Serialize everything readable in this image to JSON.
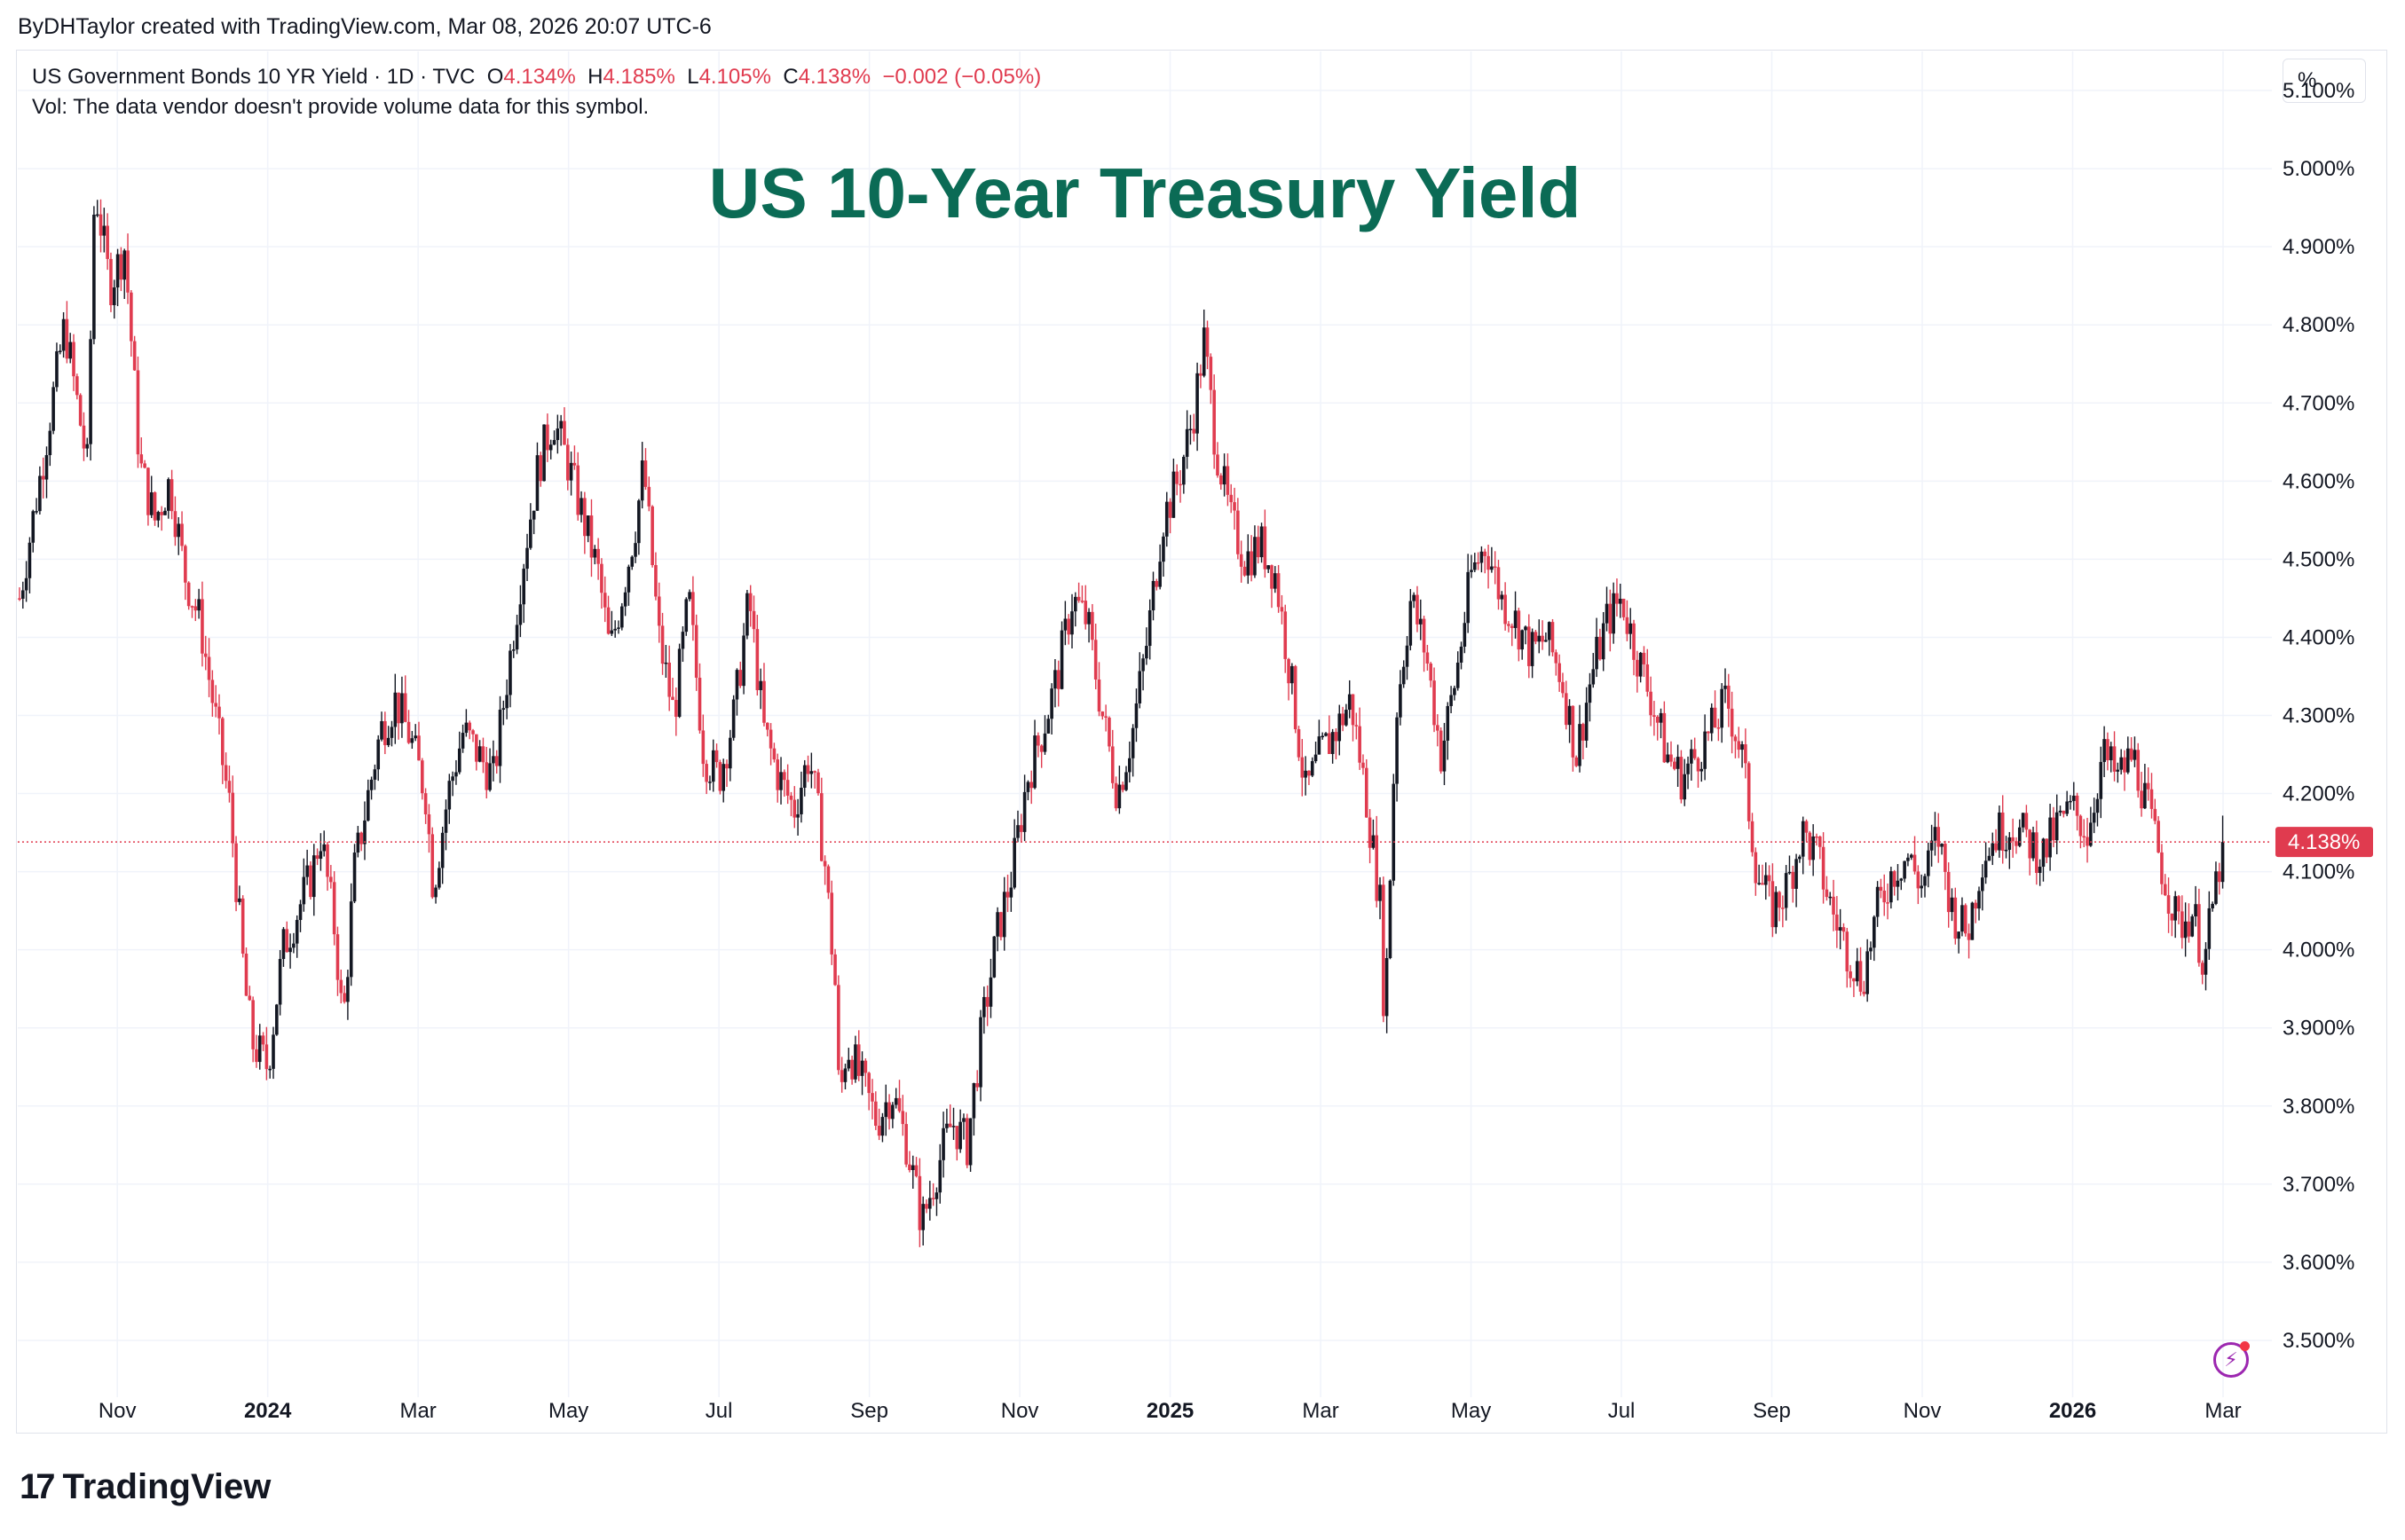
{
  "header": {
    "attribution": "ByDHTaylor created with TradingView.com, Mar 08, 2026 20:07 UTC-6"
  },
  "legend": {
    "symbol": "US Government Bonds 10 YR Yield · 1D · TVC",
    "open_label": "O",
    "open_value": "4.134%",
    "high_label": "H",
    "high_value": "4.185%",
    "low_label": "L",
    "low_value": "4.105%",
    "close_label": "C",
    "close_value": "4.138%",
    "change": "−0.002 (−0.05%)",
    "volume_note": "Vol: The data vendor doesn't provide volume data for this symbol."
  },
  "unit_button": "%",
  "branding": {
    "logo_text": "TradingView",
    "logo_mark": "17"
  },
  "colors": {
    "up": "#131722",
    "down": "#e03b4f",
    "title": "#0b6b55",
    "grid": "#f0f3fa",
    "price_line": "#e03b4f"
  },
  "icons": {
    "flash": "flash-icon",
    "logo": "tradingview-logo-icon"
  },
  "chart_data": {
    "type": "candlestick",
    "title": "US 10-Year Treasury Yield",
    "series_name": "US Government Bonds 10 YR Yield",
    "interval": "1D",
    "ylim": [
      3.45,
      5.15
    ],
    "y_ticks": [
      3.5,
      3.6,
      3.7,
      3.8,
      3.9,
      4.0,
      4.1,
      4.2,
      4.3,
      4.4,
      4.5,
      4.6,
      4.7,
      4.8,
      4.9,
      5.0,
      5.1
    ],
    "y_tick_labels": [
      "3.500%",
      "3.600%",
      "3.700%",
      "3.800%",
      "3.900%",
      "4.000%",
      "4.100%",
      "4.200%",
      "4.300%",
      "4.400%",
      "4.500%",
      "4.600%",
      "4.700%",
      "4.800%",
      "4.900%",
      "5.000%",
      "5.100%"
    ],
    "x_range_months": [
      0,
      29.3
    ],
    "x_ticks": [
      {
        "label": "Nov",
        "month": 1.3,
        "bold": false
      },
      {
        "label": "2024",
        "month": 3.3,
        "bold": true
      },
      {
        "label": "Mar",
        "month": 5.3,
        "bold": false
      },
      {
        "label": "May",
        "month": 7.3,
        "bold": false
      },
      {
        "label": "Jul",
        "month": 9.3,
        "bold": false
      },
      {
        "label": "Sep",
        "month": 11.3,
        "bold": false
      },
      {
        "label": "Nov",
        "month": 13.3,
        "bold": false
      },
      {
        "label": "2025",
        "month": 15.3,
        "bold": true
      },
      {
        "label": "Mar",
        "month": 17.3,
        "bold": false
      },
      {
        "label": "May",
        "month": 19.3,
        "bold": false
      },
      {
        "label": "Jul",
        "month": 21.3,
        "bold": false
      },
      {
        "label": "Sep",
        "month": 23.3,
        "bold": false
      },
      {
        "label": "Nov",
        "month": 25.3,
        "bold": false
      },
      {
        "label": "2026",
        "month": 27.3,
        "bold": true
      },
      {
        "label": "Mar",
        "month": 29.3,
        "bold": false
      }
    ],
    "last_price": 4.138,
    "last_price_label": "4.138%",
    "closes": [
      [
        0.0,
        4.45
      ],
      [
        0.3,
        4.62
      ],
      [
        0.6,
        4.8
      ],
      [
        0.9,
        4.62
      ],
      [
        1.0,
        4.98
      ],
      [
        1.2,
        4.85
      ],
      [
        1.4,
        4.9
      ],
      [
        1.6,
        4.62
      ],
      [
        1.8,
        4.55
      ],
      [
        2.0,
        4.6
      ],
      [
        2.2,
        4.48
      ],
      [
        2.4,
        4.42
      ],
      [
        2.6,
        4.3
      ],
      [
        2.8,
        4.18
      ],
      [
        3.0,
        3.95
      ],
      [
        3.1,
        3.88
      ],
      [
        3.3,
        3.85
      ],
      [
        3.5,
        4.0
      ],
      [
        3.7,
        4.05
      ],
      [
        3.9,
        4.1
      ],
      [
        4.0,
        4.15
      ],
      [
        4.2,
        4.02
      ],
      [
        4.3,
        3.9
      ],
      [
        4.45,
        4.1
      ],
      [
        4.6,
        4.18
      ],
      [
        4.8,
        4.28
      ],
      [
        5.0,
        4.32
      ],
      [
        5.2,
        4.27
      ],
      [
        5.4,
        4.2
      ],
      [
        5.5,
        4.08
      ],
      [
        5.7,
        4.2
      ],
      [
        5.9,
        4.28
      ],
      [
        6.1,
        4.25
      ],
      [
        6.3,
        4.22
      ],
      [
        6.5,
        4.36
      ],
      [
        6.7,
        4.5
      ],
      [
        6.9,
        4.62
      ],
      [
        7.1,
        4.68
      ],
      [
        7.3,
        4.62
      ],
      [
        7.5,
        4.55
      ],
      [
        7.7,
        4.48
      ],
      [
        7.85,
        4.38
      ],
      [
        8.0,
        4.45
      ],
      [
        8.2,
        4.55
      ],
      [
        8.3,
        4.62
      ],
      [
        8.5,
        4.4
      ],
      [
        8.7,
        4.3
      ],
      [
        8.9,
        4.45
      ],
      [
        9.1,
        4.25
      ],
      [
        9.3,
        4.22
      ],
      [
        9.5,
        4.3
      ],
      [
        9.7,
        4.45
      ],
      [
        9.9,
        4.28
      ],
      [
        10.1,
        4.22
      ],
      [
        10.3,
        4.18
      ],
      [
        10.5,
        4.25
      ],
      [
        10.7,
        4.12
      ],
      [
        10.85,
        3.95
      ],
      [
        10.9,
        3.8
      ],
      [
        11.0,
        3.88
      ],
      [
        11.2,
        3.83
      ],
      [
        11.4,
        3.78
      ],
      [
        11.6,
        3.82
      ],
      [
        11.8,
        3.75
      ],
      [
        11.9,
        3.7
      ],
      [
        12.0,
        3.65
      ],
      [
        12.2,
        3.72
      ],
      [
        12.4,
        3.78
      ],
      [
        12.6,
        3.75
      ],
      [
        12.8,
        3.9
      ],
      [
        13.0,
        4.02
      ],
      [
        13.2,
        4.1
      ],
      [
        13.4,
        4.22
      ],
      [
        13.6,
        4.28
      ],
      [
        13.8,
        4.35
      ],
      [
        14.0,
        4.45
      ],
      [
        14.2,
        4.42
      ],
      [
        14.4,
        4.3
      ],
      [
        14.6,
        4.2
      ],
      [
        14.8,
        4.28
      ],
      [
        15.0,
        4.4
      ],
      [
        15.2,
        4.55
      ],
      [
        15.4,
        4.6
      ],
      [
        15.6,
        4.68
      ],
      [
        15.75,
        4.78
      ],
      [
        15.9,
        4.65
      ],
      [
        16.1,
        4.55
      ],
      [
        16.3,
        4.5
      ],
      [
        16.5,
        4.52
      ],
      [
        16.7,
        4.48
      ],
      [
        16.9,
        4.35
      ],
      [
        17.1,
        4.2
      ],
      [
        17.3,
        4.25
      ],
      [
        17.5,
        4.28
      ],
      [
        17.7,
        4.32
      ],
      [
        17.9,
        4.2
      ],
      [
        18.1,
        4.05
      ],
      [
        18.15,
        3.9
      ],
      [
        18.3,
        4.3
      ],
      [
        18.5,
        4.45
      ],
      [
        18.7,
        4.38
      ],
      [
        18.9,
        4.25
      ],
      [
        19.1,
        4.35
      ],
      [
        19.3,
        4.48
      ],
      [
        19.5,
        4.52
      ],
      [
        19.7,
        4.45
      ],
      [
        19.9,
        4.42
      ],
      [
        20.1,
        4.38
      ],
      [
        20.3,
        4.4
      ],
      [
        20.5,
        4.35
      ],
      [
        20.7,
        4.25
      ],
      [
        20.9,
        4.35
      ],
      [
        21.1,
        4.42
      ],
      [
        21.3,
        4.45
      ],
      [
        21.5,
        4.38
      ],
      [
        21.7,
        4.32
      ],
      [
        21.9,
        4.25
      ],
      [
        22.1,
        4.22
      ],
      [
        22.3,
        4.25
      ],
      [
        22.5,
        4.28
      ],
      [
        22.7,
        4.32
      ],
      [
        22.9,
        4.25
      ],
      [
        23.1,
        4.1
      ],
      [
        23.3,
        4.05
      ],
      [
        23.5,
        4.08
      ],
      [
        23.7,
        4.15
      ],
      [
        23.9,
        4.12
      ],
      [
        24.1,
        4.05
      ],
      [
        24.3,
        4.0
      ],
      [
        24.5,
        3.96
      ],
      [
        24.7,
        4.05
      ],
      [
        24.9,
        4.1
      ],
      [
        25.1,
        4.12
      ],
      [
        25.3,
        4.08
      ],
      [
        25.5,
        4.15
      ],
      [
        25.7,
        4.05
      ],
      [
        25.9,
        4.02
      ],
      [
        26.1,
        4.12
      ],
      [
        26.3,
        4.15
      ],
      [
        26.5,
        4.16
      ],
      [
        26.7,
        4.14
      ],
      [
        26.9,
        4.12
      ],
      [
        27.1,
        4.16
      ],
      [
        27.3,
        4.18
      ],
      [
        27.5,
        4.15
      ],
      [
        27.7,
        4.25
      ],
      [
        27.9,
        4.22
      ],
      [
        28.1,
        4.25
      ],
      [
        28.3,
        4.18
      ],
      [
        28.5,
        4.1
      ],
      [
        28.7,
        4.03
      ],
      [
        28.9,
        4.05
      ],
      [
        29.05,
        3.98
      ],
      [
        29.15,
        4.05
      ],
      [
        29.3,
        4.138
      ]
    ]
  },
  "chart_text": {
    "title": "US 10-Year Treasury Yield"
  }
}
